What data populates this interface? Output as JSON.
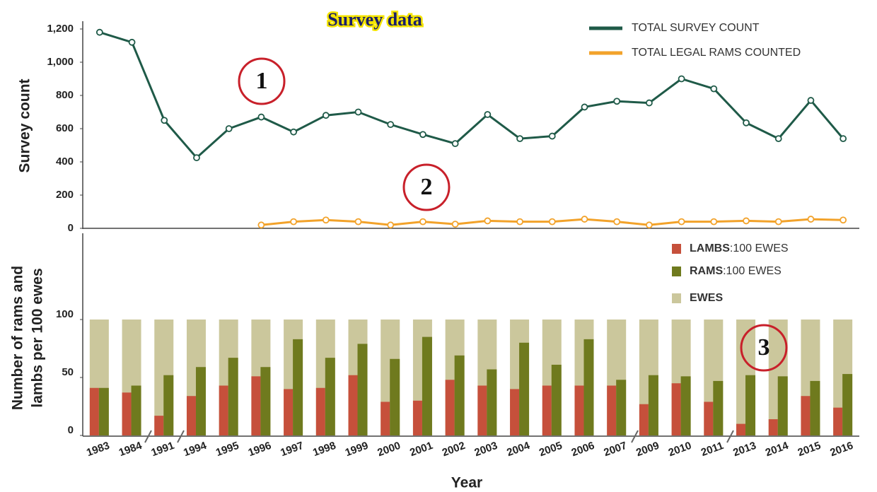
{
  "chart_data": [
    {
      "type": "line",
      "title": "Survey data",
      "ylabel": "Survey count",
      "ylim": [
        0,
        1200
      ],
      "yticks": [
        0,
        200,
        400,
        600,
        800,
        {
          "value": 1000,
          "label": "1,000"
        },
        {
          "value": 1200,
          "label": "1,200"
        }
      ],
      "legend": "upper right",
      "series": [
        {
          "name": "TOTAL SURVEY COUNT",
          "color": "#1f5a48",
          "values": [
            1180,
            1120,
            650,
            425,
            600,
            670,
            580,
            680,
            700,
            625,
            565,
            510,
            685,
            540,
            555,
            730,
            765,
            755,
            900,
            840,
            635,
            540,
            770,
            540
          ]
        },
        {
          "name": "TOTAL LEGAL RAMS COUNTED",
          "color": "#f2a22a",
          "values": [
            null,
            null,
            null,
            null,
            null,
            20,
            40,
            50,
            40,
            20,
            40,
            25,
            45,
            40,
            40,
            55,
            40,
            20,
            40,
            40,
            45,
            40,
            55,
            50
          ]
        }
      ],
      "annotations": [
        "1",
        "2"
      ]
    },
    {
      "type": "bar",
      "xlabel": "Year",
      "ylabel": [
        "Number of rams and",
        "lambs per 100 ewes"
      ],
      "categories": [
        "1983",
        "1984",
        "1991",
        "1994",
        "1995",
        "1996",
        "1997",
        "1998",
        "1999",
        "2000",
        "2001",
        "2002",
        "2003",
        "2004",
        "2005",
        "2006",
        "2007",
        "2009",
        "2010",
        "2011",
        "2013",
        "2014",
        "2015",
        "2016"
      ],
      "ylim": [
        0,
        175
      ],
      "yticks": [
        0,
        50,
        100
      ],
      "legend": "upper right",
      "series": [
        {
          "name": "LAMBS:100 EWES",
          "color": "#c6503b",
          "values": [
            41,
            37,
            17,
            34,
            43,
            51,
            40,
            41,
            52,
            29,
            30,
            48,
            43,
            40,
            43,
            43,
            43,
            27,
            45,
            29,
            10,
            14,
            34,
            24
          ]
        },
        {
          "name": "RAMS:100 EWES",
          "color": "#6f7a1e",
          "values": [
            41,
            43,
            52,
            59,
            67,
            59,
            83,
            67,
            79,
            66,
            85,
            69,
            57,
            80,
            61,
            83,
            48,
            52,
            51,
            47,
            52,
            51,
            47,
            53
          ]
        },
        {
          "name": "EWES",
          "color": "#cbc79c",
          "values": [
            100,
            100,
            100,
            100,
            100,
            100,
            100,
            100,
            100,
            100,
            100,
            100,
            100,
            100,
            100,
            100,
            100,
            100,
            100,
            100,
            100,
            100,
            100,
            100
          ]
        }
      ],
      "annotations": [
        "3"
      ]
    }
  ]
}
